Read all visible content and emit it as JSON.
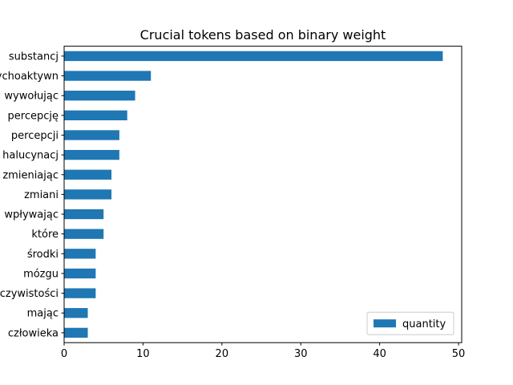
{
  "chart_data": {
    "type": "bar",
    "orientation": "horizontal",
    "title": "Crucial tokens based on binary weight",
    "xlabel": "",
    "ylabel": "",
    "categories": [
      "substancj",
      "psychoaktywn",
      "wywołując",
      "percepcję",
      "percepcji",
      "halucynacj",
      "zmieniając",
      "zmiani",
      "wpływając",
      "które",
      "środki",
      "mózgu",
      "rzeczywistości",
      "mając",
      "człowieka"
    ],
    "series": [
      {
        "name": "quantity",
        "values": [
          48,
          11,
          9,
          8,
          7,
          7,
          6,
          6,
          5,
          5,
          4,
          4,
          4,
          3,
          3
        ],
        "color": "#1f77b4"
      }
    ],
    "xlim": [
      0,
      50.4
    ],
    "xticks": [
      0,
      10,
      20,
      30,
      40,
      50
    ],
    "grid": false,
    "legend_position": "lower-right"
  }
}
